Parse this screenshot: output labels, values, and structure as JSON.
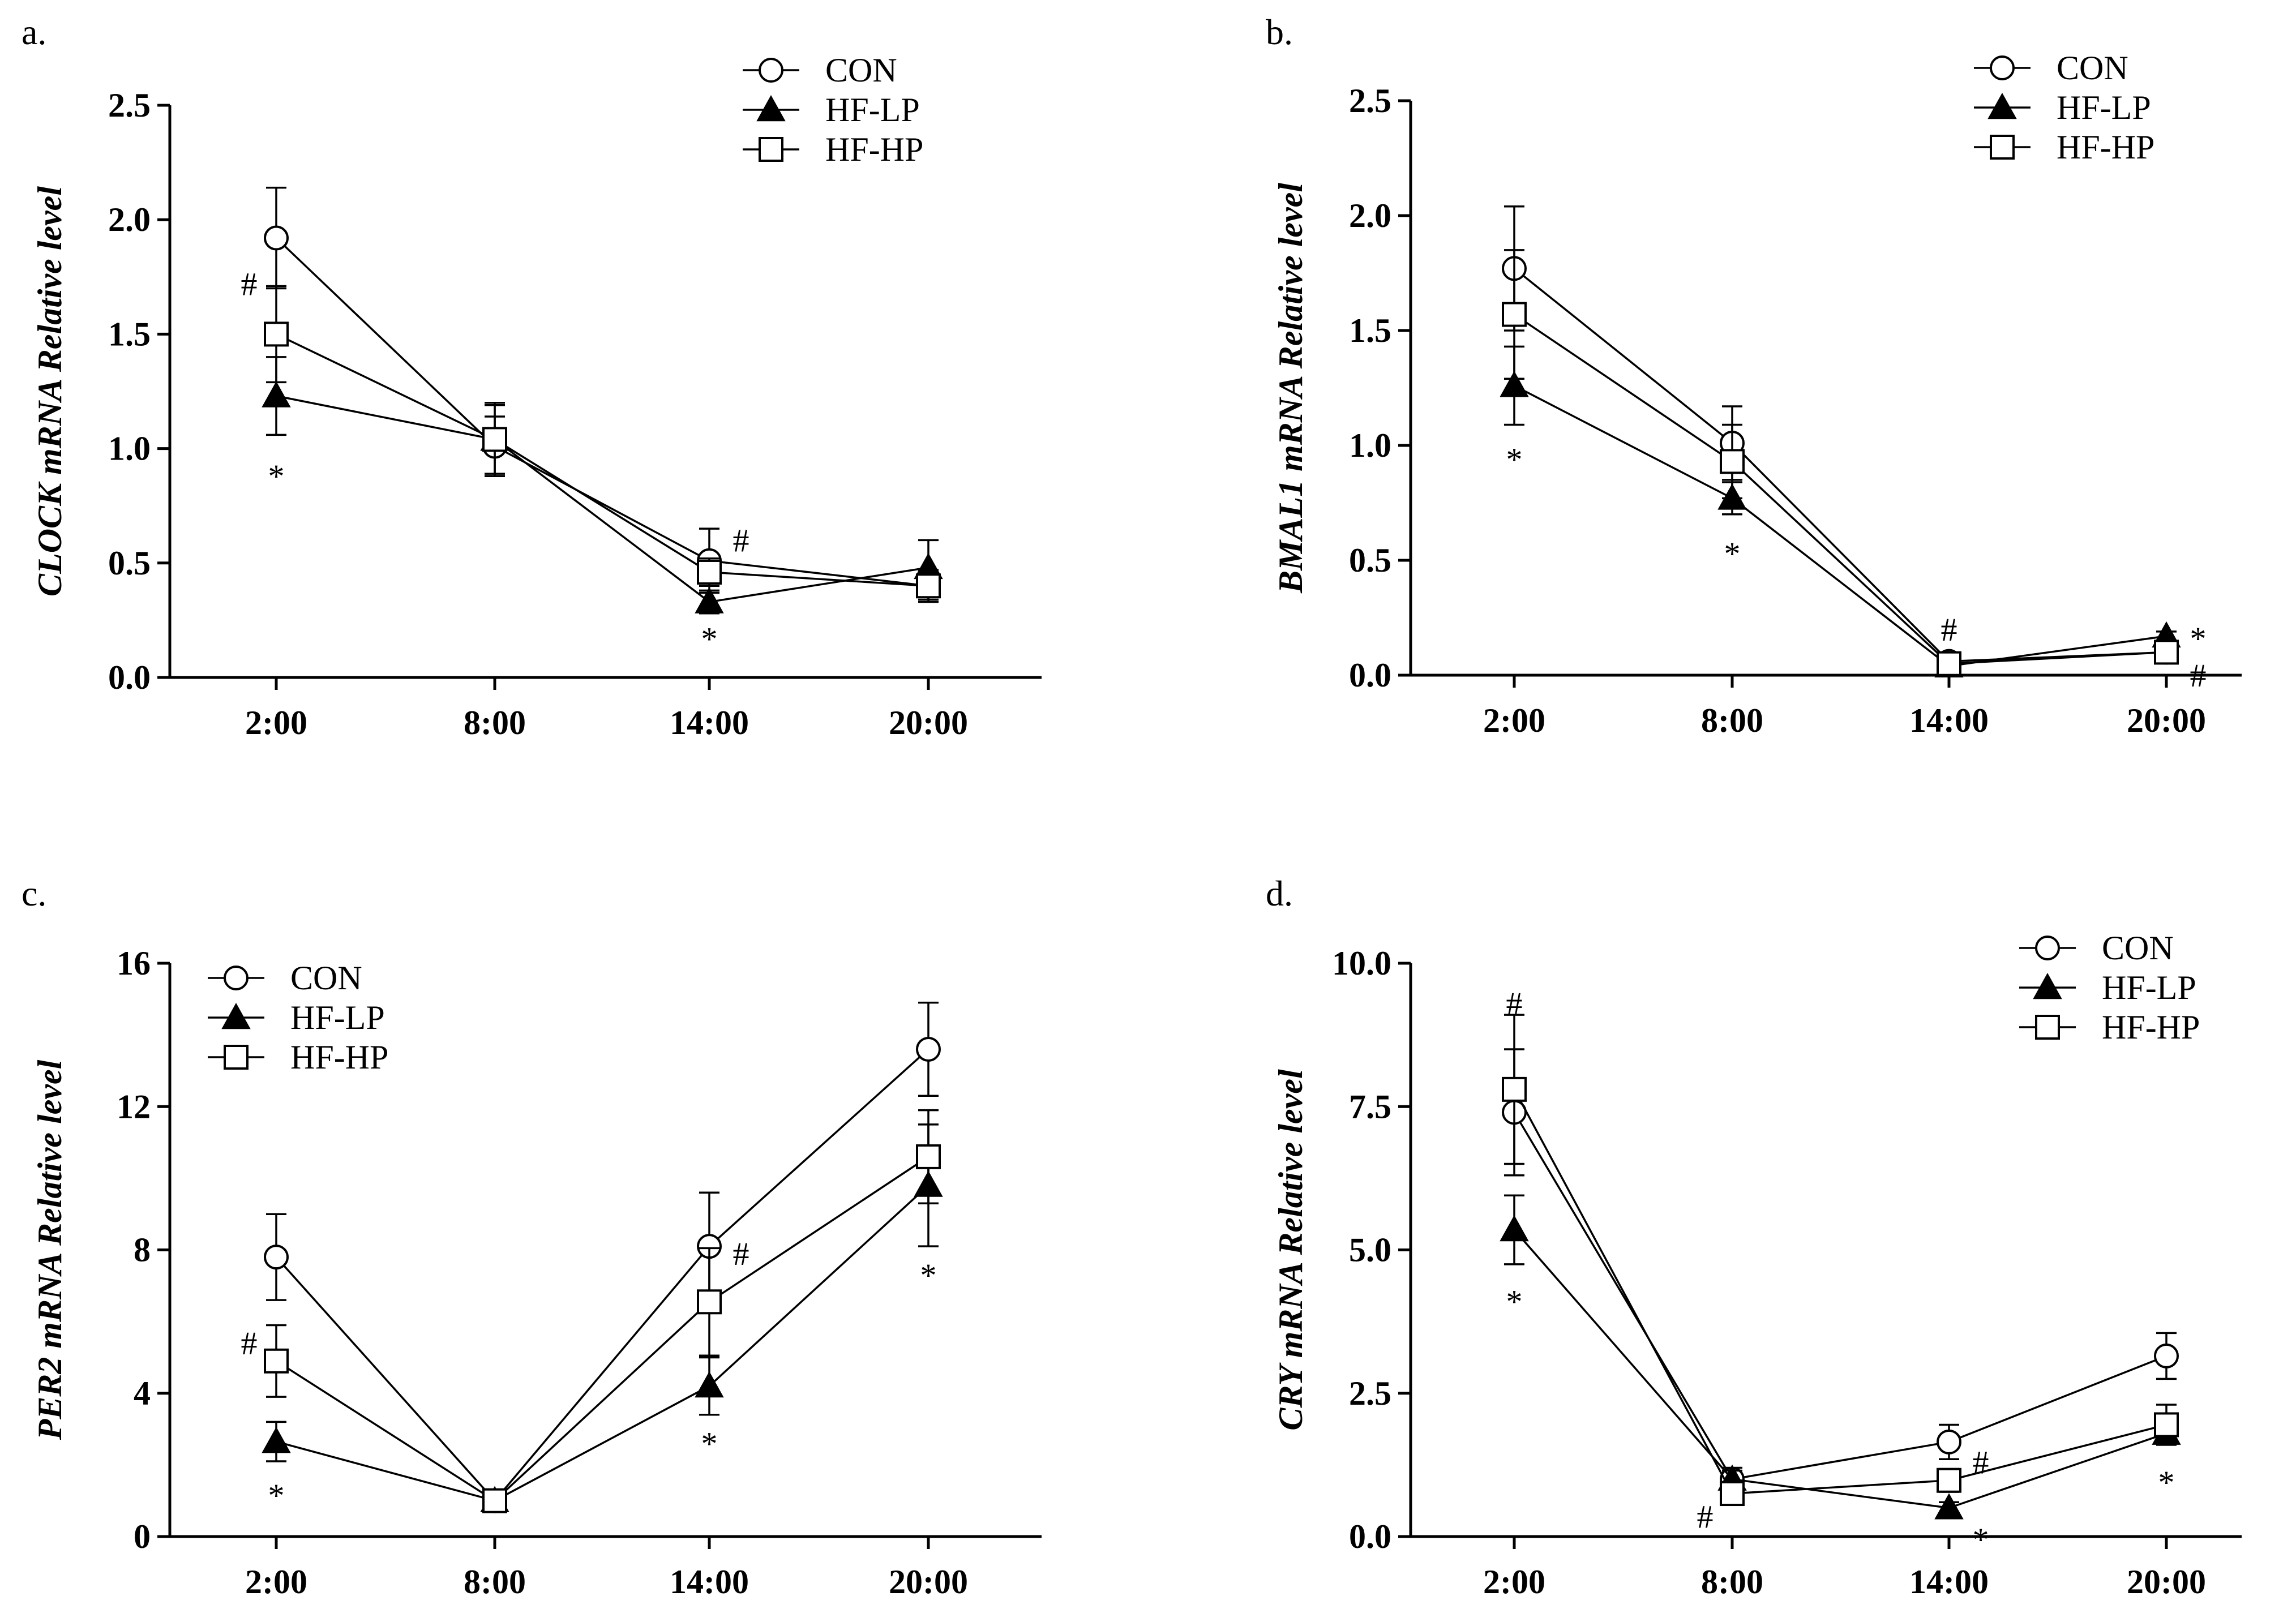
{
  "chart_data": [
    {
      "panel": "a.",
      "type": "line",
      "ylabel": "CLOCK mRNA Relative level",
      "categories": [
        "2:00",
        "8:00",
        "14:00",
        "20:00"
      ],
      "yticks": [
        "0.0",
        "0.5",
        "1.0",
        "1.5",
        "2.0",
        "2.5"
      ],
      "ylim": [
        0,
        2.5
      ],
      "legend": "top-right",
      "series": [
        {
          "name": "CON",
          "marker": "circle",
          "values": [
            1.92,
            1.01,
            0.51,
            0.4
          ],
          "errors": [
            0.22,
            0.13,
            0.14,
            0.07
          ]
        },
        {
          "name": "HF-LP",
          "marker": "triangle",
          "values": [
            1.23,
            1.04,
            0.33,
            0.48
          ],
          "errors": [
            0.17,
            0.16,
            0.05,
            0.12
          ]
        },
        {
          "name": "HF-HP",
          "marker": "square",
          "values": [
            1.5,
            1.04,
            0.46,
            0.4
          ],
          "errors": [
            0.21,
            0.15,
            0.06,
            0.06
          ]
        }
      ],
      "annotations": [
        {
          "text": "#",
          "x": 0,
          "y": 1.72,
          "side": "left"
        },
        {
          "text": "*",
          "x": 0,
          "y": 0.88,
          "side": "center"
        },
        {
          "text": "#",
          "x": 2,
          "y": 0.6,
          "side": "right"
        },
        {
          "text": "*",
          "x": 2,
          "y": 0.17,
          "side": "center"
        }
      ]
    },
    {
      "panel": "b.",
      "type": "line",
      "ylabel": "BMAL1 mRNA Relative level",
      "categories": [
        "2:00",
        "8:00",
        "14:00",
        "20:00"
      ],
      "yticks": [
        "0.0",
        "0.5",
        "1.0",
        "1.5",
        "2.0",
        "2.5"
      ],
      "ylim": [
        0,
        2.5
      ],
      "legend": "top-right",
      "series": [
        {
          "name": "CON",
          "marker": "circle",
          "values": [
            1.77,
            1.01,
            0.06,
            0.1
          ],
          "errors": [
            0.27,
            0.16,
            0.02,
            0.02
          ]
        },
        {
          "name": "HF-LP",
          "marker": "triangle",
          "values": [
            1.26,
            0.77,
            0.04,
            0.17
          ],
          "errors": [
            0.17,
            0.07,
            0.01,
            0.02
          ]
        },
        {
          "name": "HF-HP",
          "marker": "square",
          "values": [
            1.57,
            0.93,
            0.05,
            0.1
          ],
          "errors": [
            0.28,
            0.16,
            0.02,
            0.02
          ]
        }
      ],
      "annotations": [
        {
          "text": "*",
          "x": 0,
          "y": 0.94,
          "side": "center"
        },
        {
          "text": "*",
          "x": 1,
          "y": 0.53,
          "side": "center"
        },
        {
          "text": "#",
          "x": 2,
          "y": 0.2,
          "side": "center"
        },
        {
          "text": "*",
          "x": 3,
          "y": 0.16,
          "side": "right"
        },
        {
          "text": "#",
          "x": 3,
          "y": 0.0,
          "side": "right"
        }
      ]
    },
    {
      "panel": "c.",
      "type": "line",
      "ylabel": "PER2 mRNA Relative level",
      "categories": [
        "2:00",
        "8:00",
        "14:00",
        "20:00"
      ],
      "yticks": [
        "0",
        "4",
        "8",
        "12",
        "16"
      ],
      "ylim": [
        0,
        16
      ],
      "legend": "top-left",
      "series": [
        {
          "name": "CON",
          "marker": "circle",
          "values": [
            7.8,
            1.0,
            8.1,
            13.6
          ],
          "errors": [
            1.2,
            0.15,
            1.5,
            1.3
          ]
        },
        {
          "name": "HF-LP",
          "marker": "triangle",
          "values": [
            2.65,
            1.0,
            4.2,
            9.8
          ],
          "errors": [
            0.55,
            0.15,
            0.8,
            1.7
          ]
        },
        {
          "name": "HF-HP",
          "marker": "square",
          "values": [
            4.9,
            1.0,
            6.55,
            10.6
          ],
          "errors": [
            1.0,
            0.15,
            1.5,
            1.3
          ]
        }
      ],
      "annotations": [
        {
          "text": "#",
          "x": 0,
          "y": 5.4,
          "side": "left"
        },
        {
          "text": "*",
          "x": 0,
          "y": 1.15,
          "side": "center"
        },
        {
          "text": "#",
          "x": 2,
          "y": 7.9,
          "side": "right"
        },
        {
          "text": "*",
          "x": 2,
          "y": 2.6,
          "side": "center"
        },
        {
          "text": "*",
          "x": 3,
          "y": 7.3,
          "side": "center"
        }
      ]
    },
    {
      "panel": "d.",
      "type": "line",
      "ylabel": "CRY mRNA Relative level",
      "categories": [
        "2:00",
        "8:00",
        "14:00",
        "20:00"
      ],
      "yticks": [
        "0.0",
        "2.5",
        "5.0",
        "7.5",
        "10.0"
      ],
      "ylim": [
        0,
        10
      ],
      "legend": "top-right",
      "series": [
        {
          "name": "CON",
          "marker": "circle",
          "values": [
            7.4,
            1.0,
            1.65,
            3.15
          ],
          "errors": [
            1.1,
            0.2,
            0.3,
            0.4
          ]
        },
        {
          "name": "HF-LP",
          "marker": "triangle",
          "values": [
            5.35,
            1.0,
            0.5,
            1.8
          ],
          "errors": [
            0.6,
            0.15,
            0.1,
            0.2
          ]
        },
        {
          "name": "HF-HP",
          "marker": "square",
          "values": [
            7.8,
            0.75,
            0.98,
            1.95
          ],
          "errors": [
            1.3,
            0.1,
            0.2,
            0.35
          ]
        }
      ],
      "annotations": [
        {
          "text": "#",
          "x": 0,
          "y": 9.3,
          "side": "center"
        },
        {
          "text": "*",
          "x": 0,
          "y": 4.1,
          "side": "center"
        },
        {
          "text": "#",
          "x": 1,
          "y": 0.35,
          "side": "left"
        },
        {
          "text": "#",
          "x": 2,
          "y": 1.3,
          "side": "right"
        },
        {
          "text": "*",
          "x": 2,
          "y": -0.05,
          "side": "right"
        },
        {
          "text": "*",
          "x": 3,
          "y": 0.95,
          "side": "center"
        }
      ]
    }
  ]
}
